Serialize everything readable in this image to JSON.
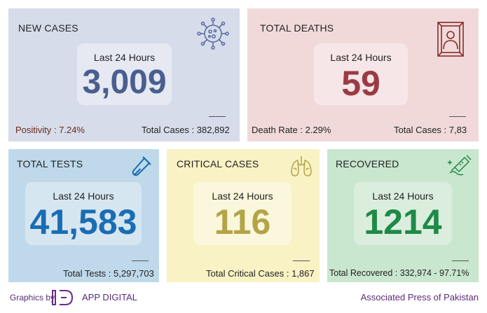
{
  "new_cases": {
    "title": "NEW CASES",
    "period_label": "Last 24 Hours",
    "value": "3,009",
    "positivity_label": "Positivity : 7.24%",
    "total_label": "Total Cases : 382,892",
    "icon": "virus-icon",
    "color": "#4a5f8f"
  },
  "total_deaths": {
    "title": "TOTAL DEATHS",
    "period_label": "Last 24 Hours",
    "value": "59",
    "rate_label": "Death Rate : 2.29%",
    "total_label": "Total Cases : 7,83",
    "icon": "portrait-frame-icon",
    "color": "#9b3a45"
  },
  "total_tests": {
    "title": "TOTAL TESTS",
    "period_label": "Last 24 Hours",
    "value": "41,583",
    "total_label": "Total Tests : 5,297,703",
    "icon": "test-tube-icon",
    "color": "#1a6db3"
  },
  "critical_cases": {
    "title": "CRITICAL CASES",
    "period_label": "Last 24 Hours",
    "value": "116",
    "total_label": "Total Critical Cases : 1,867",
    "icon": "lungs-icon",
    "color": "#b3a448"
  },
  "recovered": {
    "title": "RECOVERED",
    "period_label": "Last 24 Hours",
    "value": "1214",
    "total_label": "Total Recovered : 332,974 - 97.71%",
    "icon": "syringe-hand-icon",
    "color": "#1e8a47"
  },
  "footer": {
    "graphics_by": "Graphics by",
    "brand": "APP DIGITAL",
    "credit": "Associated Press of Pakistan"
  }
}
